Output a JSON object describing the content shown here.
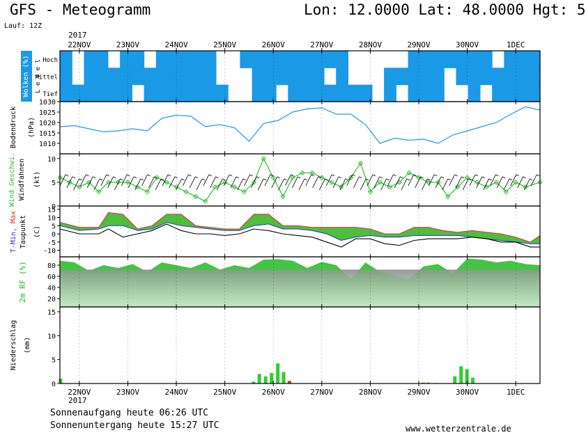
{
  "header": {
    "title": "GFS - Meteogramm",
    "location": "Lon: 12.0000 Lat: 48.0000 Hgt: 5",
    "run": "Lauf: 12Z",
    "year_top": "2017",
    "year_bottom": "2017"
  },
  "dates": [
    "22NOV",
    "23NOV",
    "24NOV",
    "25NOV",
    "26NOV",
    "27NOV",
    "28NOV",
    "29NOV",
    "30NOV",
    "1DEC"
  ],
  "footer": {
    "sunrise": "Sonnenaufgang heute 06:26 UTC",
    "sunset": "Sonnenuntergang heute 15:27 UTC",
    "website": "www.wetterzentrale.de"
  },
  "colors": {
    "cloud": "#1a9ae6",
    "pressure_line": "#1a9ae6",
    "wind_green": "#33bb33",
    "humidity_green": "#22bb22",
    "precip_green": "#33cc33",
    "precip_red": "#dd2222",
    "tmin_blue": "#3333cc",
    "tmax_red": "#dd3333",
    "dew_black": "#000000"
  },
  "chart_data": [
    {
      "type": "heatmap",
      "panel": "clouds",
      "ylabel": "Wolken (%)",
      "ylabel2": "Level",
      "levels": [
        "Hoch",
        "Mittel",
        "Tief"
      ],
      "x_start": 21.6,
      "x_end": 31.5,
      "note": "cloud cover by layer; 1 = covered, 0 = clear",
      "hoch": [
        1,
        0,
        1,
        1,
        0,
        1,
        1,
        0,
        1,
        1,
        1,
        1,
        1,
        0,
        0,
        1,
        1,
        1,
        1,
        1,
        1,
        1,
        1,
        1,
        0,
        0,
        0,
        0,
        0,
        1,
        1,
        1,
        1,
        1,
        1,
        1,
        0,
        1,
        1,
        1
      ],
      "mittel": [
        1,
        0,
        1,
        1,
        1,
        1,
        1,
        1,
        1,
        1,
        1,
        1,
        1,
        0,
        0,
        0,
        1,
        1,
        1,
        1,
        1,
        1,
        0,
        1,
        0,
        0,
        0,
        1,
        1,
        1,
        1,
        1,
        0,
        1,
        1,
        1,
        1,
        1,
        1,
        1
      ],
      "tief": [
        1,
        1,
        1,
        1,
        1,
        1,
        0,
        1,
        1,
        1,
        1,
        1,
        1,
        1,
        0,
        0,
        1,
        1,
        0,
        1,
        1,
        1,
        1,
        1,
        1,
        1,
        0,
        1,
        0,
        1,
        1,
        1,
        0,
        0,
        1,
        0,
        1,
        1,
        1,
        1
      ]
    },
    {
      "type": "line",
      "panel": "pressure",
      "ylabel": "Bodendruck (hPa)",
      "ylim": [
        1005,
        1030
      ],
      "yticks": [
        1010,
        1015,
        1020,
        1025,
        1030
      ],
      "x": [
        21.6,
        21.9,
        22.2,
        22.5,
        22.8,
        23.1,
        23.4,
        23.7,
        24.0,
        24.3,
        24.6,
        24.9,
        25.2,
        25.5,
        25.8,
        26.1,
        26.4,
        26.7,
        27.0,
        27.3,
        27.6,
        27.9,
        28.2,
        28.5,
        28.8,
        29.1,
        29.4,
        29.7,
        30.0,
        30.3,
        30.6,
        30.9,
        31.2,
        31.5
      ],
      "values": [
        1018,
        1018.5,
        1017,
        1015.5,
        1016,
        1017,
        1016,
        1022,
        1023.5,
        1023,
        1018,
        1019,
        1017.5,
        1011,
        1019.5,
        1021,
        1025,
        1026.5,
        1027,
        1024,
        1024,
        1019,
        1010,
        1012.5,
        1011.5,
        1012,
        1010,
        1014,
        1016,
        1018,
        1020,
        1024,
        1027.5,
        1026
      ]
    },
    {
      "type": "line",
      "panel": "wind",
      "ylabel": "Wind Geschwi. Windfahnen (kt)",
      "ylim": [
        0,
        11
      ],
      "yticks": [
        0,
        5,
        10
      ],
      "x": [
        21.6,
        21.8,
        22.0,
        22.2,
        22.4,
        22.6,
        22.8,
        23.0,
        23.2,
        23.4,
        23.6,
        23.8,
        24.0,
        24.2,
        24.4,
        24.6,
        24.8,
        25.0,
        25.2,
        25.4,
        25.6,
        25.8,
        26.0,
        26.2,
        26.4,
        26.6,
        26.8,
        27.0,
        27.2,
        27.4,
        27.6,
        27.8,
        28.0,
        28.2,
        28.4,
        28.6,
        28.8,
        29.0,
        29.2,
        29.4,
        29.6,
        29.8,
        30.0,
        30.2,
        30.4,
        30.6,
        30.8,
        31.0,
        31.2,
        31.5
      ],
      "values": [
        6,
        5,
        4,
        5,
        3,
        5,
        5,
        5,
        4,
        3,
        6,
        5,
        4,
        3,
        2,
        1,
        4,
        5,
        4,
        3,
        5,
        10,
        6,
        2,
        6,
        7,
        7,
        6,
        5,
        4,
        6,
        9,
        3,
        5,
        4,
        5,
        7,
        6,
        5,
        5,
        2,
        4,
        6,
        5,
        4,
        5,
        3,
        5,
        4,
        5
      ]
    },
    {
      "type": "area",
      "panel": "temperature",
      "ylabel": "T-Min, Max Taupunkt (C)",
      "ylim": [
        -14,
        17
      ],
      "yticks": [
        -10,
        -5,
        0,
        5,
        10,
        15
      ],
      "x": [
        21.6,
        22.0,
        22.4,
        22.6,
        22.9,
        23.2,
        23.5,
        23.8,
        24.1,
        24.4,
        24.7,
        25.0,
        25.3,
        25.6,
        25.9,
        26.2,
        26.5,
        26.8,
        27.1,
        27.4,
        27.7,
        28.0,
        28.3,
        28.6,
        28.9,
        29.2,
        29.5,
        29.8,
        30.1,
        30.4,
        30.7,
        31.0,
        31.3,
        31.5
      ],
      "tmax": [
        7,
        4,
        4,
        13,
        12,
        3,
        5,
        12,
        12,
        5,
        4,
        3,
        3,
        12,
        12,
        5,
        5,
        4,
        4,
        4,
        4,
        3,
        0,
        0,
        4,
        4,
        2,
        1,
        2,
        1,
        0,
        -2,
        -5,
        -1
      ],
      "tmin": [
        5,
        2,
        3,
        5,
        5,
        2,
        3,
        7,
        5,
        4,
        3,
        2,
        2,
        5,
        6,
        3,
        3,
        2,
        0,
        -4,
        -2,
        -1,
        -2,
        -2,
        -1,
        -1,
        -1,
        -1,
        -2,
        -3,
        -4,
        -5,
        -6,
        -6
      ],
      "dew": [
        3,
        0,
        0,
        3,
        -2,
        0,
        2,
        6,
        2,
        0,
        0,
        -1,
        0,
        3,
        2,
        0,
        -1,
        -2,
        -5,
        -8,
        -3,
        -3,
        -6,
        -7,
        -4,
        -3,
        -3,
        -3,
        -2,
        -3,
        -5,
        -5,
        -8,
        -8
      ]
    },
    {
      "type": "area",
      "panel": "humidity",
      "ylabel": "2m RF (%)",
      "ylim": [
        5,
        95
      ],
      "yticks": [
        20,
        40,
        60,
        80
      ],
      "x": [
        21.6,
        21.9,
        22.2,
        22.5,
        22.8,
        23.1,
        23.4,
        23.7,
        24.0,
        24.3,
        24.6,
        24.9,
        25.2,
        25.5,
        25.8,
        26.1,
        26.4,
        26.7,
        27.0,
        27.3,
        27.6,
        27.9,
        28.2,
        28.5,
        28.8,
        29.1,
        29.4,
        29.7,
        30.0,
        30.3,
        30.6,
        30.9,
        31.2,
        31.5
      ],
      "values": [
        88,
        85,
        70,
        80,
        75,
        82,
        68,
        85,
        80,
        75,
        85,
        72,
        80,
        75,
        90,
        91,
        88,
        75,
        86,
        80,
        55,
        85,
        68,
        62,
        55,
        78,
        82,
        65,
        92,
        90,
        85,
        88,
        82,
        80
      ]
    },
    {
      "type": "bar",
      "panel": "precipitation",
      "ylabel": "Niederschlag (mm)",
      "ylim": [
        0,
        16
      ],
      "yticks": [
        0,
        5,
        10,
        15
      ],
      "x": [
        21.62,
        25.6,
        25.72,
        25.85,
        25.97,
        26.1,
        26.22,
        26.34,
        29.1,
        29.2,
        29.35,
        29.75,
        29.88,
        30.0,
        30.12
      ],
      "values": [
        1.0,
        0.4,
        2.0,
        1.5,
        2.2,
        4.2,
        2.4,
        0.6,
        0.2,
        0.2,
        0.1,
        1.5,
        3.6,
        3.0,
        1.2
      ],
      "red": [
        0,
        0,
        0,
        0,
        0,
        0,
        0,
        0.4,
        0,
        0,
        0,
        0,
        0,
        0,
        0
      ]
    }
  ]
}
